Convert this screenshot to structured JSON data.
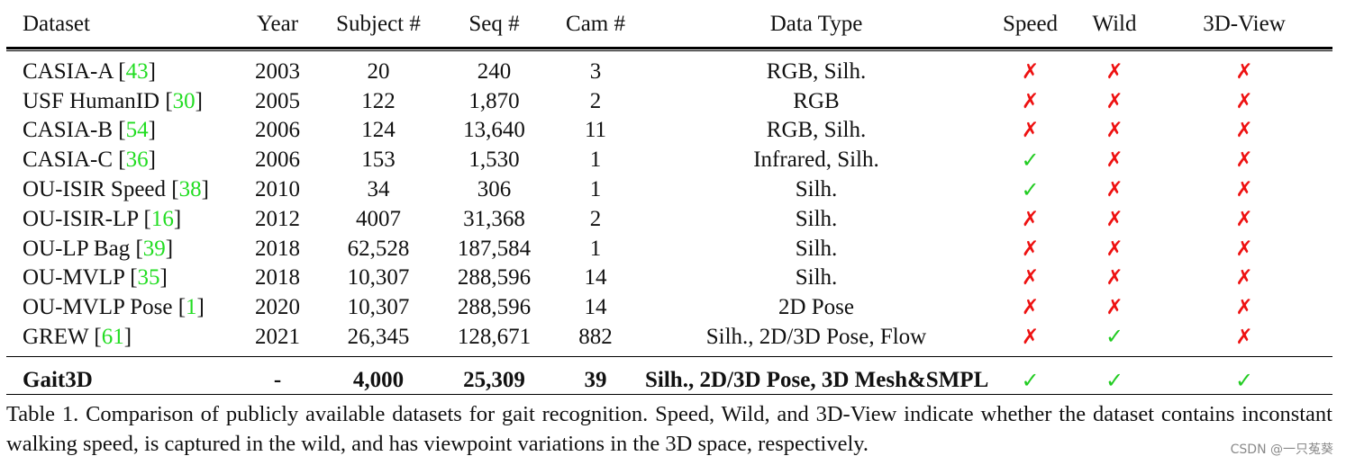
{
  "table": {
    "headers": [
      "Dataset",
      "Year",
      "Subject #",
      "Seq #",
      "Cam #",
      "Data Type",
      "Speed",
      "Wild",
      "3D-View"
    ],
    "rows": [
      {
        "name": "CASIA-A",
        "ref": "43",
        "year": "2003",
        "subjects": "20",
        "seqs": "240",
        "cams": "3",
        "data_type": "RGB, Silh.",
        "speed": "✗",
        "wild": "✗",
        "view3d": "✗"
      },
      {
        "name": "USF HumanID",
        "ref": "30",
        "year": "2005",
        "subjects": "122",
        "seqs": "1,870",
        "cams": "2",
        "data_type": "RGB",
        "speed": "✗",
        "wild": "✗",
        "view3d": "✗"
      },
      {
        "name": "CASIA-B",
        "ref": "54",
        "year": "2006",
        "subjects": "124",
        "seqs": "13,640",
        "cams": "11",
        "data_type": "RGB, Silh.",
        "speed": "✗",
        "wild": "✗",
        "view3d": "✗"
      },
      {
        "name": "CASIA-C",
        "ref": "36",
        "year": "2006",
        "subjects": "153",
        "seqs": "1,530",
        "cams": "1",
        "data_type": "Infrared, Silh.",
        "speed": "✓",
        "wild": "✗",
        "view3d": "✗"
      },
      {
        "name": "OU-ISIR Speed",
        "ref": "38",
        "year": "2010",
        "subjects": "34",
        "seqs": "306",
        "cams": "1",
        "data_type": "Silh.",
        "speed": "✓",
        "wild": "✗",
        "view3d": "✗"
      },
      {
        "name": "OU-ISIR-LP",
        "ref": "16",
        "year": "2012",
        "subjects": "4007",
        "seqs": "31,368",
        "cams": "2",
        "data_type": "Silh.",
        "speed": "✗",
        "wild": "✗",
        "view3d": "✗"
      },
      {
        "name": "OU-LP Bag",
        "ref": "39",
        "year": "2018",
        "subjects": "62,528",
        "seqs": "187,584",
        "cams": "1",
        "data_type": "Silh.",
        "speed": "✗",
        "wild": "✗",
        "view3d": "✗"
      },
      {
        "name": "OU-MVLP",
        "ref": "35",
        "year": "2018",
        "subjects": "10,307",
        "seqs": "288,596",
        "cams": "14",
        "data_type": "Silh.",
        "speed": "✗",
        "wild": "✗",
        "view3d": "✗"
      },
      {
        "name": "OU-MVLP Pose",
        "ref": "1",
        "year": "2020",
        "subjects": "10,307",
        "seqs": "288,596",
        "cams": "14",
        "data_type": "2D Pose",
        "speed": "✗",
        "wild": "✗",
        "view3d": "✗"
      },
      {
        "name": "GREW",
        "ref": "61",
        "year": "2021",
        "subjects": "26,345",
        "seqs": "128,671",
        "cams": "882",
        "data_type": "Silh., 2D/3D Pose, Flow",
        "speed": "✗",
        "wild": "✓",
        "view3d": "✗"
      }
    ],
    "ours": {
      "name": "Gait3D",
      "year": "-",
      "subjects": "4,000",
      "seqs": "25,309",
      "cams": "39",
      "data_type": "Silh., 2D/3D Pose, 3D Mesh&SMPL",
      "speed": "✓",
      "wild": "✓",
      "view3d": "✓"
    }
  },
  "caption": "Table 1. Comparison of publicly available datasets for gait recognition. Speed, Wild, and 3D-View indicate whether the dataset contains inconstant walking speed, is captured in the wild, and has viewpoint variations in the 3D space, respectively.",
  "watermark": "CSDN @一只菟葵",
  "colors": {
    "citation": "#22dd22",
    "check": "#22cc22",
    "cross": "#ee1111"
  }
}
